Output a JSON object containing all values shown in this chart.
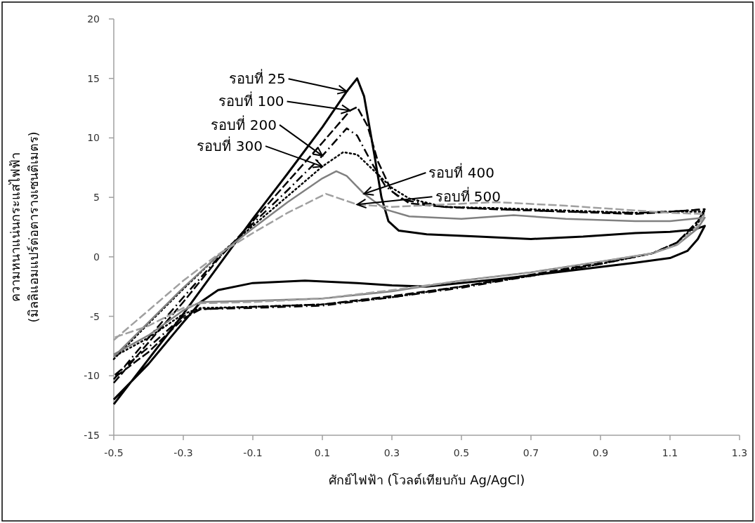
{
  "chart_data": {
    "type": "line",
    "xlabel": "ศักย์ไฟฟ้า (โวลต์เทียบกับ Ag/AgCl)",
    "ylabel": "ความหนาแน่นกระแสไฟฟ้า\n(มิลลิแอมแปร์ต่อตารางเซนติเมตร)",
    "xlim": [
      -0.5,
      1.3
    ],
    "xticks": [
      -0.5,
      -0.3,
      -0.1,
      0.1,
      0.3,
      0.5,
      0.7,
      0.9,
      1.1,
      1.3
    ],
    "ylim": [
      -15,
      20
    ],
    "yticks": [
      -15,
      -10,
      -5,
      0,
      5,
      10,
      15,
      20
    ],
    "grid": false,
    "series": [
      {
        "color": "#000000",
        "line_style": "solid",
        "x": [
          -0.5,
          -0.4,
          -0.3,
          -0.2,
          -0.1,
          0,
          0.1,
          0.17,
          0.2,
          0.22,
          0.25,
          0.27,
          0.29,
          0.32,
          0.4,
          0.55,
          0.7,
          0.85,
          1.0,
          1.1,
          1.17,
          1.2,
          1.18,
          1.15,
          1.1,
          1.0,
          0.8,
          0.6,
          0.4,
          0.3,
          0.2,
          0.05,
          -0.1,
          -0.2,
          -0.25,
          -0.3,
          -0.4,
          -0.5
        ],
        "values": [
          -12.4,
          -8.6,
          -4.8,
          -0.8,
          3.2,
          7.0,
          10.9,
          13.9,
          15.0,
          13.5,
          8.5,
          5,
          3,
          2.2,
          1.9,
          1.7,
          1.5,
          1.7,
          2.0,
          2.1,
          2.3,
          2.6,
          1.5,
          0.5,
          -0.1,
          -0.5,
          -1.2,
          -1.9,
          -2.5,
          -2.4,
          -2.2,
          -2.0,
          -2.2,
          -2.8,
          -3.8,
          -5.5,
          -9.0,
          -12.0
        ]
      },
      {
        "color": "#000000",
        "line_style": "dashed",
        "x": [
          -0.5,
          -0.4,
          -0.3,
          -0.2,
          -0.1,
          0,
          0.1,
          0.18,
          0.2,
          0.23,
          0.26,
          0.3,
          0.35,
          0.45,
          0.6,
          0.8,
          1.0,
          1.1,
          1.2,
          1.18,
          1.12,
          1.05,
          0.9,
          0.7,
          0.5,
          0.3,
          0.1,
          -0.1,
          -0.25,
          -0.3,
          -0.4,
          -0.5
        ],
        "values": [
          -10.6,
          -7.2,
          -3.8,
          -0.2,
          3.0,
          6.3,
          9.6,
          12.3,
          12.6,
          11,
          8,
          5.5,
          4.5,
          4.2,
          4.0,
          3.8,
          3.6,
          3.8,
          4.0,
          3.0,
          1.2,
          0.3,
          -0.5,
          -1.5,
          -2.5,
          -3.3,
          -4.0,
          -4.2,
          -4.4,
          -5.2,
          -8.0,
          -10.2
        ]
      },
      {
        "color": "#000000",
        "line_style": "dashdot",
        "x": [
          -0.5,
          -0.4,
          -0.3,
          -0.2,
          -0.1,
          0,
          0.1,
          0.17,
          0.2,
          0.24,
          0.28,
          0.33,
          0.45,
          0.6,
          0.8,
          1.0,
          1.1,
          1.2,
          1.18,
          1.12,
          1.05,
          0.9,
          0.7,
          0.5,
          0.3,
          0.1,
          -0.1,
          -0.25,
          -0.3,
          -0.4,
          -0.5
        ],
        "values": [
          -10.3,
          -6.8,
          -3.4,
          -0.1,
          2.8,
          5.6,
          8.5,
          10.8,
          10.2,
          8.0,
          6.0,
          4.8,
          4.2,
          4.0,
          3.8,
          3.7,
          3.8,
          4.0,
          3.0,
          1.2,
          0.3,
          -0.6,
          -1.6,
          -2.6,
          -3.4,
          -4.1,
          -4.3,
          -4.4,
          -5.0,
          -7.6,
          -10.0
        ]
      },
      {
        "color": "#000000",
        "line_style": "dotted",
        "x": [
          -0.5,
          -0.4,
          -0.3,
          -0.2,
          -0.1,
          0,
          0.1,
          0.16,
          0.2,
          0.25,
          0.3,
          0.35,
          0.45,
          0.6,
          0.8,
          1.0,
          1.1,
          1.2,
          1.18,
          1.12,
          1.05,
          0.9,
          0.7,
          0.5,
          0.3,
          0.1,
          -0.1,
          -0.25,
          -0.3,
          -0.4,
          -0.5
        ],
        "values": [
          -8.6,
          -5.6,
          -2.7,
          0.1,
          2.6,
          5.1,
          7.6,
          8.8,
          8.6,
          7.2,
          5.8,
          4.9,
          4.2,
          4.1,
          3.9,
          3.7,
          3.8,
          3.8,
          2.8,
          1.2,
          0.3,
          -0.6,
          -1.6,
          -2.5,
          -3.4,
          -4.0,
          -4.2,
          -4.3,
          -4.8,
          -6.8,
          -8.4
        ]
      },
      {
        "color": "#808080",
        "line_style": "solid",
        "x": [
          -0.5,
          -0.4,
          -0.3,
          -0.2,
          -0.1,
          0,
          0.1,
          0.14,
          0.17,
          0.22,
          0.28,
          0.35,
          0.5,
          0.65,
          0.8,
          1.0,
          1.1,
          1.2,
          1.18,
          1.12,
          1.05,
          0.9,
          0.7,
          0.5,
          0.3,
          0.1,
          -0.1,
          -0.25,
          -0.3,
          -0.4,
          -0.5
        ],
        "values": [
          -8.4,
          -5.5,
          -2.6,
          0.1,
          2.4,
          4.6,
          6.6,
          7.2,
          6.8,
          5.3,
          4.0,
          3.4,
          3.2,
          3.5,
          3.2,
          3.0,
          3.0,
          3.3,
          2.4,
          1.0,
          0.3,
          -0.4,
          -1.3,
          -2.0,
          -2.9,
          -3.5,
          -3.7,
          -3.8,
          -4.5,
          -6.6,
          -8.2
        ]
      },
      {
        "color": "#a0a0a0",
        "line_style": "dashed",
        "x": [
          -0.5,
          -0.4,
          -0.3,
          -0.2,
          -0.1,
          0,
          0.11,
          0.15,
          0.2,
          0.3,
          0.45,
          0.6,
          0.8,
          1.0,
          1.1,
          1.2,
          1.18,
          1.12,
          1.05,
          0.9,
          0.7,
          0.5,
          0.3,
          0.1,
          -0.1,
          -0.25,
          -0.3,
          -0.4,
          -0.5
        ],
        "values": [
          -7.0,
          -4.5,
          -2.0,
          0.2,
          2.0,
          3.7,
          5.3,
          4.9,
          4.4,
          4.2,
          4.4,
          4.6,
          4.3,
          3.9,
          3.7,
          3.6,
          2.6,
          1.0,
          0.3,
          -0.4,
          -1.3,
          -2.0,
          -2.8,
          -3.5,
          -3.8,
          -3.9,
          -4.3,
          -5.8,
          -6.8
        ]
      }
    ],
    "annotations": [
      {
        "text": "รอบที่ 25",
        "x": 0.17,
        "y": 13.9
      },
      {
        "text": "รอบที่ 100",
        "x": 0.18,
        "y": 12.3
      },
      {
        "text": "รอบที่ 200",
        "x": 0.1,
        "y": 8.5
      },
      {
        "text": "รอบที่ 300",
        "x": 0.1,
        "y": 7.6
      },
      {
        "text": "รอบที่ 400",
        "x": 0.22,
        "y": 5.3
      },
      {
        "text": "รอบที่ 500",
        "x": 0.2,
        "y": 4.4
      }
    ]
  }
}
